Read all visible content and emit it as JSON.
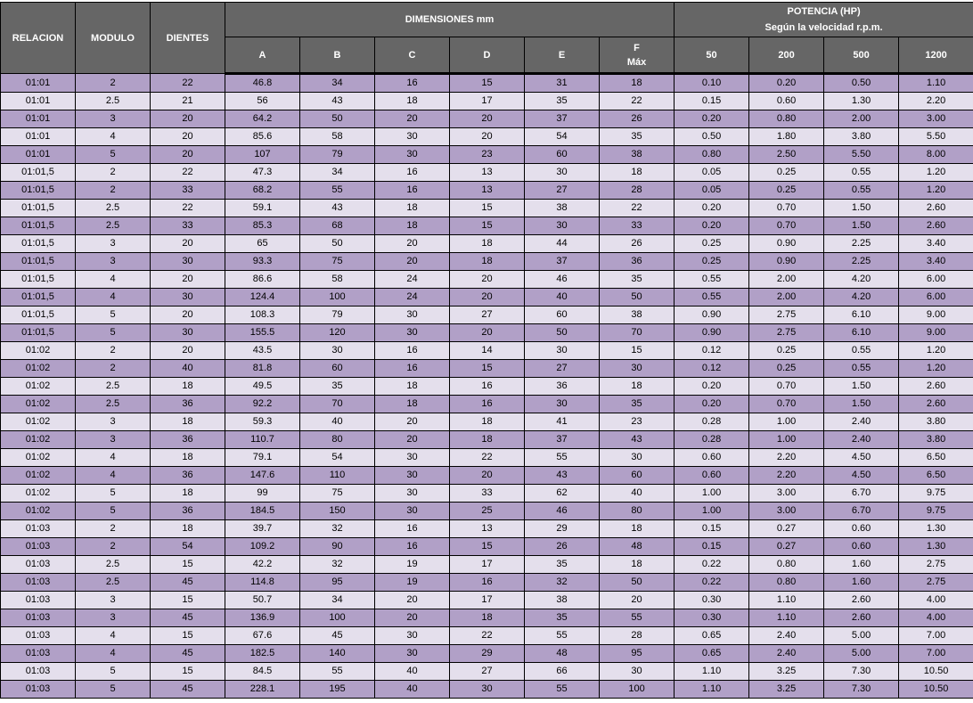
{
  "header": {
    "relacion": "RELACION",
    "modulo": "MODULO",
    "dientes": "DIENTES",
    "dimensiones": "DIMENSIONES mm",
    "potencia": "POTENCIA (HP)",
    "potencia_sub": "Según la velocidad r.p.m.",
    "dims": [
      "A",
      "B",
      "C",
      "D",
      "E",
      "F"
    ],
    "f_sub": "Máx",
    "rpm": [
      "50",
      "200",
      "500",
      "1200"
    ]
  },
  "colors": {
    "header_bg": "#666666",
    "row_dark": "#b1a0c7",
    "row_light": "#e4dfec"
  },
  "rows": [
    [
      "01:01",
      "2",
      "22",
      "46.8",
      "34",
      "16",
      "15",
      "31",
      "18",
      "0.10",
      "0.20",
      "0.50",
      "1.10"
    ],
    [
      "01:01",
      "2.5",
      "21",
      "56",
      "43",
      "18",
      "17",
      "35",
      "22",
      "0.15",
      "0.60",
      "1.30",
      "2.20"
    ],
    [
      "01:01",
      "3",
      "20",
      "64.2",
      "50",
      "20",
      "20",
      "37",
      "26",
      "0.20",
      "0.80",
      "2.00",
      "3.00"
    ],
    [
      "01:01",
      "4",
      "20",
      "85.6",
      "58",
      "30",
      "20",
      "54",
      "35",
      "0.50",
      "1.80",
      "3.80",
      "5.50"
    ],
    [
      "01:01",
      "5",
      "20",
      "107",
      "79",
      "30",
      "23",
      "60",
      "38",
      "0.80",
      "2.50",
      "5.50",
      "8.00"
    ],
    [
      "01:01,5",
      "2",
      "22",
      "47.3",
      "34",
      "16",
      "13",
      "30",
      "18",
      "0.05",
      "0.25",
      "0.55",
      "1.20"
    ],
    [
      "01:01,5",
      "2",
      "33",
      "68.2",
      "55",
      "16",
      "13",
      "27",
      "28",
      "0.05",
      "0.25",
      "0.55",
      "1.20"
    ],
    [
      "01:01,5",
      "2.5",
      "22",
      "59.1",
      "43",
      "18",
      "15",
      "38",
      "22",
      "0.20",
      "0.70",
      "1.50",
      "2.60"
    ],
    [
      "01:01,5",
      "2.5",
      "33",
      "85.3",
      "68",
      "18",
      "15",
      "30",
      "33",
      "0.20",
      "0.70",
      "1.50",
      "2.60"
    ],
    [
      "01:01,5",
      "3",
      "20",
      "65",
      "50",
      "20",
      "18",
      "44",
      "26",
      "0.25",
      "0.90",
      "2.25",
      "3.40"
    ],
    [
      "01:01,5",
      "3",
      "30",
      "93.3",
      "75",
      "20",
      "18",
      "37",
      "36",
      "0.25",
      "0.90",
      "2.25",
      "3.40"
    ],
    [
      "01:01,5",
      "4",
      "20",
      "86.6",
      "58",
      "24",
      "20",
      "46",
      "35",
      "0.55",
      "2.00",
      "4.20",
      "6.00"
    ],
    [
      "01:01,5",
      "4",
      "30",
      "124.4",
      "100",
      "24",
      "20",
      "40",
      "50",
      "0.55",
      "2.00",
      "4.20",
      "6.00"
    ],
    [
      "01:01,5",
      "5",
      "20",
      "108.3",
      "79",
      "30",
      "27",
      "60",
      "38",
      "0.90",
      "2.75",
      "6.10",
      "9.00"
    ],
    [
      "01:01,5",
      "5",
      "30",
      "155.5",
      "120",
      "30",
      "20",
      "50",
      "70",
      "0.90",
      "2.75",
      "6.10",
      "9.00"
    ],
    [
      "01:02",
      "2",
      "20",
      "43.5",
      "30",
      "16",
      "14",
      "30",
      "15",
      "0.12",
      "0.25",
      "0.55",
      "1.20"
    ],
    [
      "01:02",
      "2",
      "40",
      "81.8",
      "60",
      "16",
      "15",
      "27",
      "30",
      "0.12",
      "0.25",
      "0.55",
      "1.20"
    ],
    [
      "01:02",
      "2.5",
      "18",
      "49.5",
      "35",
      "18",
      "16",
      "36",
      "18",
      "0.20",
      "0.70",
      "1.50",
      "2.60"
    ],
    [
      "01:02",
      "2.5",
      "36",
      "92.2",
      "70",
      "18",
      "16",
      "30",
      "35",
      "0.20",
      "0.70",
      "1.50",
      "2.60"
    ],
    [
      "01:02",
      "3",
      "18",
      "59.3",
      "40",
      "20",
      "18",
      "41",
      "23",
      "0.28",
      "1.00",
      "2.40",
      "3.80"
    ],
    [
      "01:02",
      "3",
      "36",
      "110.7",
      "80",
      "20",
      "18",
      "37",
      "43",
      "0.28",
      "1.00",
      "2.40",
      "3.80"
    ],
    [
      "01:02",
      "4",
      "18",
      "79.1",
      "54",
      "30",
      "22",
      "55",
      "30",
      "0.60",
      "2.20",
      "4.50",
      "6.50"
    ],
    [
      "01:02",
      "4",
      "36",
      "147.6",
      "110",
      "30",
      "20",
      "43",
      "60",
      "0.60",
      "2.20",
      "4.50",
      "6.50"
    ],
    [
      "01:02",
      "5",
      "18",
      "99",
      "75",
      "30",
      "33",
      "62",
      "40",
      "1.00",
      "3.00",
      "6.70",
      "9.75"
    ],
    [
      "01:02",
      "5",
      "36",
      "184.5",
      "150",
      "30",
      "25",
      "46",
      "80",
      "1.00",
      "3.00",
      "6.70",
      "9.75"
    ],
    [
      "01:03",
      "2",
      "18",
      "39.7",
      "32",
      "16",
      "13",
      "29",
      "18",
      "0.15",
      "0.27",
      "0.60",
      "1.30"
    ],
    [
      "01:03",
      "2",
      "54",
      "109.2",
      "90",
      "16",
      "15",
      "26",
      "48",
      "0.15",
      "0.27",
      "0.60",
      "1.30"
    ],
    [
      "01:03",
      "2.5",
      "15",
      "42.2",
      "32",
      "19",
      "17",
      "35",
      "18",
      "0.22",
      "0.80",
      "1.60",
      "2.75"
    ],
    [
      "01:03",
      "2.5",
      "45",
      "114.8",
      "95",
      "19",
      "16",
      "32",
      "50",
      "0.22",
      "0.80",
      "1.60",
      "2.75"
    ],
    [
      "01:03",
      "3",
      "15",
      "50.7",
      "34",
      "20",
      "17",
      "38",
      "20",
      "0.30",
      "1.10",
      "2.60",
      "4.00"
    ],
    [
      "01:03",
      "3",
      "45",
      "136.9",
      "100",
      "20",
      "18",
      "35",
      "55",
      "0.30",
      "1.10",
      "2.60",
      "4.00"
    ],
    [
      "01:03",
      "4",
      "15",
      "67.6",
      "45",
      "30",
      "22",
      "55",
      "28",
      "0.65",
      "2.40",
      "5.00",
      "7.00"
    ],
    [
      "01:03",
      "4",
      "45",
      "182.5",
      "140",
      "30",
      "29",
      "48",
      "95",
      "0.65",
      "2.40",
      "5.00",
      "7.00"
    ],
    [
      "01:03",
      "5",
      "15",
      "84.5",
      "55",
      "40",
      "27",
      "66",
      "30",
      "1.10",
      "3.25",
      "7.30",
      "10.50"
    ],
    [
      "01:03",
      "5",
      "45",
      "228.1",
      "195",
      "40",
      "30",
      "55",
      "100",
      "1.10",
      "3.25",
      "7.30",
      "10.50"
    ]
  ]
}
